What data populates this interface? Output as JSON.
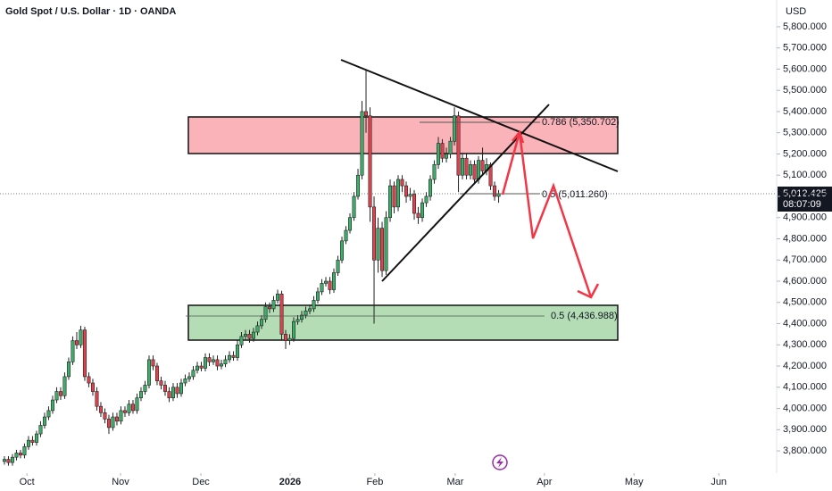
{
  "chart_data": {
    "type": "candlestick",
    "title": "Gold Spot / U.S. Dollar · 1D · OANDA",
    "y_axis_unit": "USD",
    "last_price_label": "5,012.425",
    "countdown": "08:07:09",
    "up_color": "#3fae6a",
    "down_color": "#e0424e",
    "open": [
      3750,
      3760,
      3745,
      3770,
      3790,
      3780,
      3820,
      3850,
      3840,
      3880,
      3920,
      3960,
      3990,
      4040,
      4080,
      4060,
      4150,
      4220,
      4320,
      4300,
      4370,
      4150,
      4120,
      4080,
      4010,
      3980,
      3950,
      3910,
      3960,
      3940,
      3990,
      3980,
      4020,
      3990,
      4050,
      4080,
      4110,
      4230,
      4200,
      4130,
      4110,
      4080,
      4050,
      4100,
      4070,
      4120,
      4140,
      4150,
      4180,
      4200,
      4190,
      4240,
      4220,
      4230,
      4200,
      4210,
      4230,
      4250,
      4240,
      4300,
      4340,
      4350,
      4330,
      4360,
      4390,
      4420,
      4480,
      4470,
      4510,
      4540,
      4350,
      4320,
      4330,
      4410,
      4420,
      4440,
      4460,
      4470,
      4510,
      4550,
      4590,
      4600,
      4560,
      4640,
      4700,
      4790,
      4840,
      4900,
      5000,
      5100,
      5400,
      5380,
      4950,
      4700,
      4850,
      4650,
      4900,
      5050,
      4950,
      5080,
      5050,
      5000,
      5010,
      4920,
      4900,
      4970,
      5000,
      5080,
      5150,
      5250,
      5180,
      5200,
      5260,
      5380,
      5100,
      5180,
      5100,
      5150,
      5080,
      5170,
      5120,
      5150,
      5050,
      5000
    ],
    "high": [
      3775,
      3775,
      3785,
      3805,
      3805,
      3835,
      3870,
      3870,
      3895,
      3940,
      3980,
      4010,
      4060,
      4100,
      4100,
      4170,
      4240,
      4340,
      4360,
      4390,
      4385,
      4170,
      4140,
      4100,
      4030,
      4000,
      3970,
      3980,
      3980,
      4010,
      4010,
      4040,
      4040,
      4070,
      4100,
      4130,
      4250,
      4250,
      4215,
      4150,
      4130,
      4100,
      4120,
      4120,
      4140,
      4160,
      4170,
      4200,
      4220,
      4220,
      4260,
      4260,
      4250,
      4250,
      4230,
      4250,
      4270,
      4270,
      4320,
      4360,
      4370,
      4370,
      4380,
      4410,
      4440,
      4500,
      4500,
      4530,
      4560,
      4555,
      4370,
      4350,
      4430,
      4440,
      4460,
      4480,
      4490,
      4530,
      4570,
      4610,
      4620,
      4620,
      4660,
      4720,
      4810,
      4860,
      4920,
      5020,
      5130,
      5450,
      5600,
      5420,
      5000,
      4900,
      4880,
      4930,
      5080,
      5070,
      5100,
      5100,
      5070,
      5040,
      5030,
      4950,
      4990,
      5020,
      5100,
      5170,
      5280,
      5270,
      5230,
      5280,
      5420,
      5400,
      5200,
      5200,
      5170,
      5170,
      5190,
      5230,
      5180,
      5160,
      5070,
      5030
    ],
    "low": [
      3735,
      3730,
      3730,
      3755,
      3765,
      3765,
      3805,
      3825,
      3825,
      3865,
      3905,
      3945,
      3975,
      4025,
      4040,
      4045,
      4135,
      4205,
      4280,
      4285,
      4130,
      4100,
      4060,
      3990,
      3960,
      3930,
      3880,
      3895,
      3920,
      3925,
      3960,
      3965,
      3975,
      3975,
      4035,
      4065,
      4095,
      4180,
      4110,
      4090,
      4060,
      4030,
      4035,
      4050,
      4055,
      4105,
      4125,
      4135,
      4165,
      4175,
      4175,
      4200,
      4205,
      4180,
      4185,
      4195,
      4215,
      4225,
      4225,
      4285,
      4320,
      4310,
      4315,
      4345,
      4375,
      4405,
      4450,
      4455,
      4495,
      4320,
      4280,
      4300,
      4315,
      4395,
      4405,
      4425,
      4445,
      4455,
      4495,
      4535,
      4575,
      4540,
      4545,
      4625,
      4685,
      4775,
      4825,
      4885,
      4985,
      5080,
      5300,
      4880,
      4400,
      4640,
      4620,
      4630,
      4880,
      4920,
      4930,
      5020,
      4970,
      4980,
      4890,
      4870,
      4880,
      4950,
      4980,
      5060,
      5130,
      5160,
      5160,
      5180,
      5240,
      5020,
      5080,
      5080,
      5080,
      5060,
      5060,
      5100,
      5100,
      5030,
      4980,
      4970
    ],
    "close": [
      3760,
      3745,
      3770,
      3790,
      3780,
      3820,
      3850,
      3840,
      3880,
      3920,
      3960,
      3990,
      4040,
      4080,
      4060,
      4150,
      4220,
      4320,
      4300,
      4370,
      4150,
      4120,
      4080,
      4010,
      3980,
      3950,
      3910,
      3960,
      3940,
      3990,
      3980,
      4020,
      3990,
      4050,
      4080,
      4110,
      4230,
      4200,
      4130,
      4110,
      4080,
      4050,
      4100,
      4070,
      4120,
      4140,
      4150,
      4180,
      4200,
      4190,
      4240,
      4220,
      4230,
      4200,
      4210,
      4230,
      4250,
      4240,
      4300,
      4340,
      4350,
      4330,
      4360,
      4390,
      4420,
      4480,
      4470,
      4510,
      4540,
      4350,
      4320,
      4330,
      4410,
      4420,
      4440,
      4460,
      4470,
      4510,
      4550,
      4590,
      4600,
      4560,
      4640,
      4700,
      4790,
      4840,
      4900,
      5000,
      5100,
      5400,
      5380,
      4950,
      4700,
      4850,
      4650,
      4900,
      5050,
      4950,
      5080,
      5050,
      5000,
      5010,
      4920,
      4900,
      4970,
      5000,
      5080,
      5150,
      5250,
      5180,
      5200,
      5260,
      5380,
      5100,
      5180,
      5100,
      5150,
      5080,
      5170,
      5120,
      5150,
      5050,
      5000,
      5012
    ],
    "xlim": [
      -1.1,
      192.2
    ],
    "xticks": [
      {
        "value": 5.6,
        "label": "Oct"
      },
      {
        "value": 28.9,
        "label": "Nov"
      },
      {
        "value": 48.9,
        "label": "Dec"
      },
      {
        "value": 71.1,
        "label": "2026"
      },
      {
        "value": 92.2,
        "label": "Feb"
      },
      {
        "value": 112.2,
        "label": "Mar"
      },
      {
        "value": 134.4,
        "label": "Apr"
      },
      {
        "value": 156.7,
        "label": "May"
      },
      {
        "value": 177.8,
        "label": "Jun"
      }
    ],
    "ylim": [
      3695,
      5926
    ],
    "yticks": [
      {
        "value": 3800,
        "label": "3,800.000"
      },
      {
        "value": 3900,
        "label": "3,900.000"
      },
      {
        "value": 4000,
        "label": "4,000.000"
      },
      {
        "value": 4100,
        "label": "4,100.000"
      },
      {
        "value": 4200,
        "label": "4,200.000"
      },
      {
        "value": 4300,
        "label": "4,300.000"
      },
      {
        "value": 4400,
        "label": "4,400.000"
      },
      {
        "value": 4500,
        "label": "4,500.000"
      },
      {
        "value": 4600,
        "label": "4,600.000"
      },
      {
        "value": 4700,
        "label": "4,700.000"
      },
      {
        "value": 4800,
        "label": "4,800.000"
      },
      {
        "value": 4900,
        "label": "4,900.000"
      },
      {
        "value": 5000,
        "label": "5,000.000"
      },
      {
        "value": 5100,
        "label": "5,100.000"
      },
      {
        "value": 5200,
        "label": "5,200.000"
      },
      {
        "value": 5300,
        "label": "5,300.000"
      },
      {
        "value": 5400,
        "label": "5,400.000"
      },
      {
        "value": 5500,
        "label": "5,500.000"
      },
      {
        "value": 5600,
        "label": "5,600.000"
      },
      {
        "value": 5700,
        "label": "5,700.000"
      },
      {
        "value": 5800,
        "label": "5,800.000"
      }
    ],
    "annotations": [
      "0.786 (5,350.702)",
      "0.5 (5,011.260)",
      "0.5 (4,436.988)"
    ]
  }
}
